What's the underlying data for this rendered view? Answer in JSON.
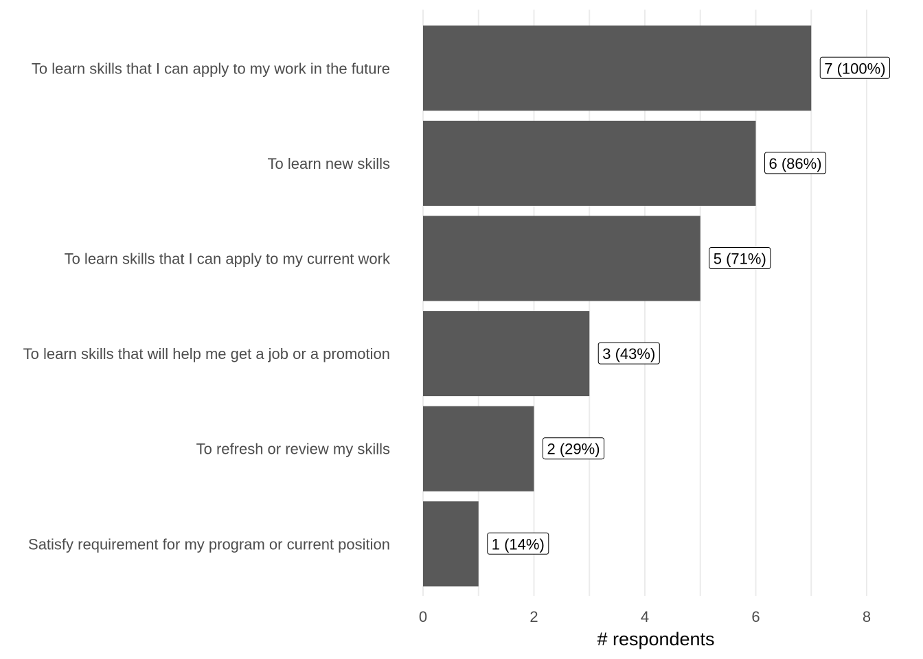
{
  "chart_data": {
    "type": "bar",
    "orientation": "horizontal",
    "categories": [
      "To learn skills that I can apply to my work in the future",
      "To learn new skills",
      "To learn skills that I can apply to my current work",
      "To learn skills that will help me get a job or a promotion",
      "To refresh or review my skills",
      "Satisfy requirement for my program or current position"
    ],
    "values": [
      7,
      6,
      5,
      3,
      2,
      1
    ],
    "data_labels": [
      "7 (100%)",
      "6 (86%)",
      "5 (71%)",
      "3 (43%)",
      "2 (29%)",
      "1 (14%)"
    ],
    "x_ticks": [
      0,
      2,
      4,
      6,
      8
    ],
    "xlim": [
      0,
      8
    ],
    "xlabel": "# respondents",
    "ylabel": "",
    "title": "",
    "grid": "vertical",
    "legend": "none",
    "bar_color": "#595959",
    "grid_color": "#ebebeb"
  }
}
